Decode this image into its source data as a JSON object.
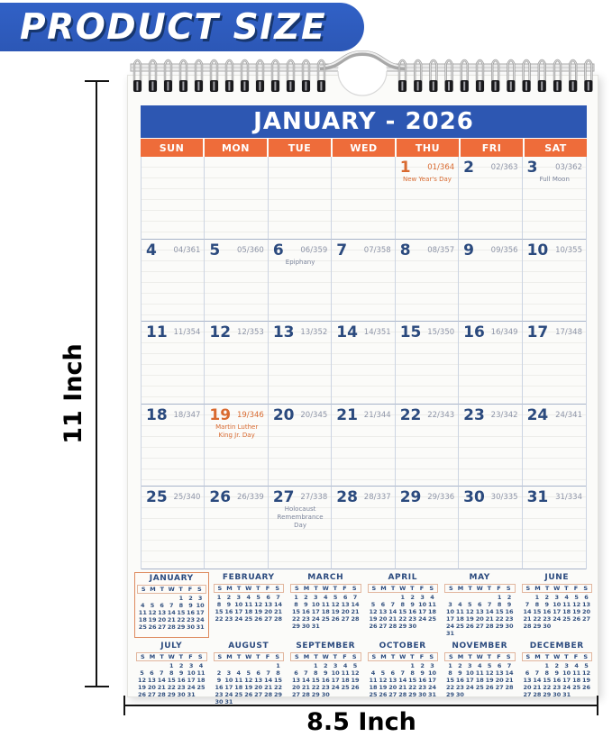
{
  "banner": {
    "label": "PRODUCT SIZE"
  },
  "dimensions": {
    "height_label": "11 Inch",
    "width_label": "8.5 Inch"
  },
  "colors": {
    "banner-blue": "#3161c6",
    "header-blue": "#2d57b2",
    "accent-orange": "#ee6c3a",
    "holiday-orange": "#d96a30",
    "navy": "#2b4a7e",
    "doy-gray": "#8e95a8",
    "mini-border-orange": "#de8a5e"
  },
  "calendar": {
    "title": "JANUARY - 2026",
    "weekdays": [
      "SUN",
      "MON",
      "TUE",
      "WED",
      "THU",
      "FRI",
      "SAT"
    ],
    "weeks": [
      [
        null,
        null,
        null,
        null,
        {
          "day": "1",
          "doy": "01/364",
          "note": "New Year's Day",
          "holiday": true
        },
        {
          "day": "2",
          "doy": "02/363"
        },
        {
          "day": "3",
          "doy": "03/362",
          "note": "Full Moon"
        }
      ],
      [
        {
          "day": "4",
          "doy": "04/361"
        },
        {
          "day": "5",
          "doy": "05/360"
        },
        {
          "day": "6",
          "doy": "06/359",
          "note": "Epiphany"
        },
        {
          "day": "7",
          "doy": "07/358"
        },
        {
          "day": "8",
          "doy": "08/357"
        },
        {
          "day": "9",
          "doy": "09/356"
        },
        {
          "day": "10",
          "doy": "10/355"
        }
      ],
      [
        {
          "day": "11",
          "doy": "11/354"
        },
        {
          "day": "12",
          "doy": "12/353"
        },
        {
          "day": "13",
          "doy": "13/352"
        },
        {
          "day": "14",
          "doy": "14/351"
        },
        {
          "day": "15",
          "doy": "15/350"
        },
        {
          "day": "16",
          "doy": "16/349"
        },
        {
          "day": "17",
          "doy": "17/348"
        }
      ],
      [
        {
          "day": "18",
          "doy": "18/347"
        },
        {
          "day": "19",
          "doy": "19/346",
          "note": "Martin Luther King Jr. Day",
          "holiday": true
        },
        {
          "day": "20",
          "doy": "20/345"
        },
        {
          "day": "21",
          "doy": "21/344"
        },
        {
          "day": "22",
          "doy": "22/343"
        },
        {
          "day": "23",
          "doy": "23/342"
        },
        {
          "day": "24",
          "doy": "24/341"
        }
      ],
      [
        {
          "day": "25",
          "doy": "25/340"
        },
        {
          "day": "26",
          "doy": "26/339"
        },
        {
          "day": "27",
          "doy": "27/338",
          "note": "Holocaust Remembrance Day"
        },
        {
          "day": "28",
          "doy": "28/337"
        },
        {
          "day": "29",
          "doy": "29/336"
        },
        {
          "day": "30",
          "doy": "30/335"
        },
        {
          "day": "31",
          "doy": "31/334"
        }
      ]
    ]
  },
  "year_overview": {
    "week_header": [
      "S",
      "M",
      "T",
      "W",
      "T",
      "F",
      "S"
    ],
    "months": [
      {
        "name": "JANUARY",
        "start": 4,
        "days": 31,
        "highlight": true
      },
      {
        "name": "FEBRUARY",
        "start": 0,
        "days": 28
      },
      {
        "name": "MARCH",
        "start": 0,
        "days": 31
      },
      {
        "name": "APRIL",
        "start": 3,
        "days": 30
      },
      {
        "name": "MAY",
        "start": 5,
        "days": 31
      },
      {
        "name": "JUNE",
        "start": 1,
        "days": 30
      },
      {
        "name": "JULY",
        "start": 3,
        "days": 31
      },
      {
        "name": "AUGUST",
        "start": 6,
        "days": 31
      },
      {
        "name": "SEPTEMBER",
        "start": 2,
        "days": 30
      },
      {
        "name": "OCTOBER",
        "start": 4,
        "days": 31
      },
      {
        "name": "NOVEMBER",
        "start": 0,
        "days": 30
      },
      {
        "name": "DECEMBER",
        "start": 2,
        "days": 31
      }
    ]
  }
}
